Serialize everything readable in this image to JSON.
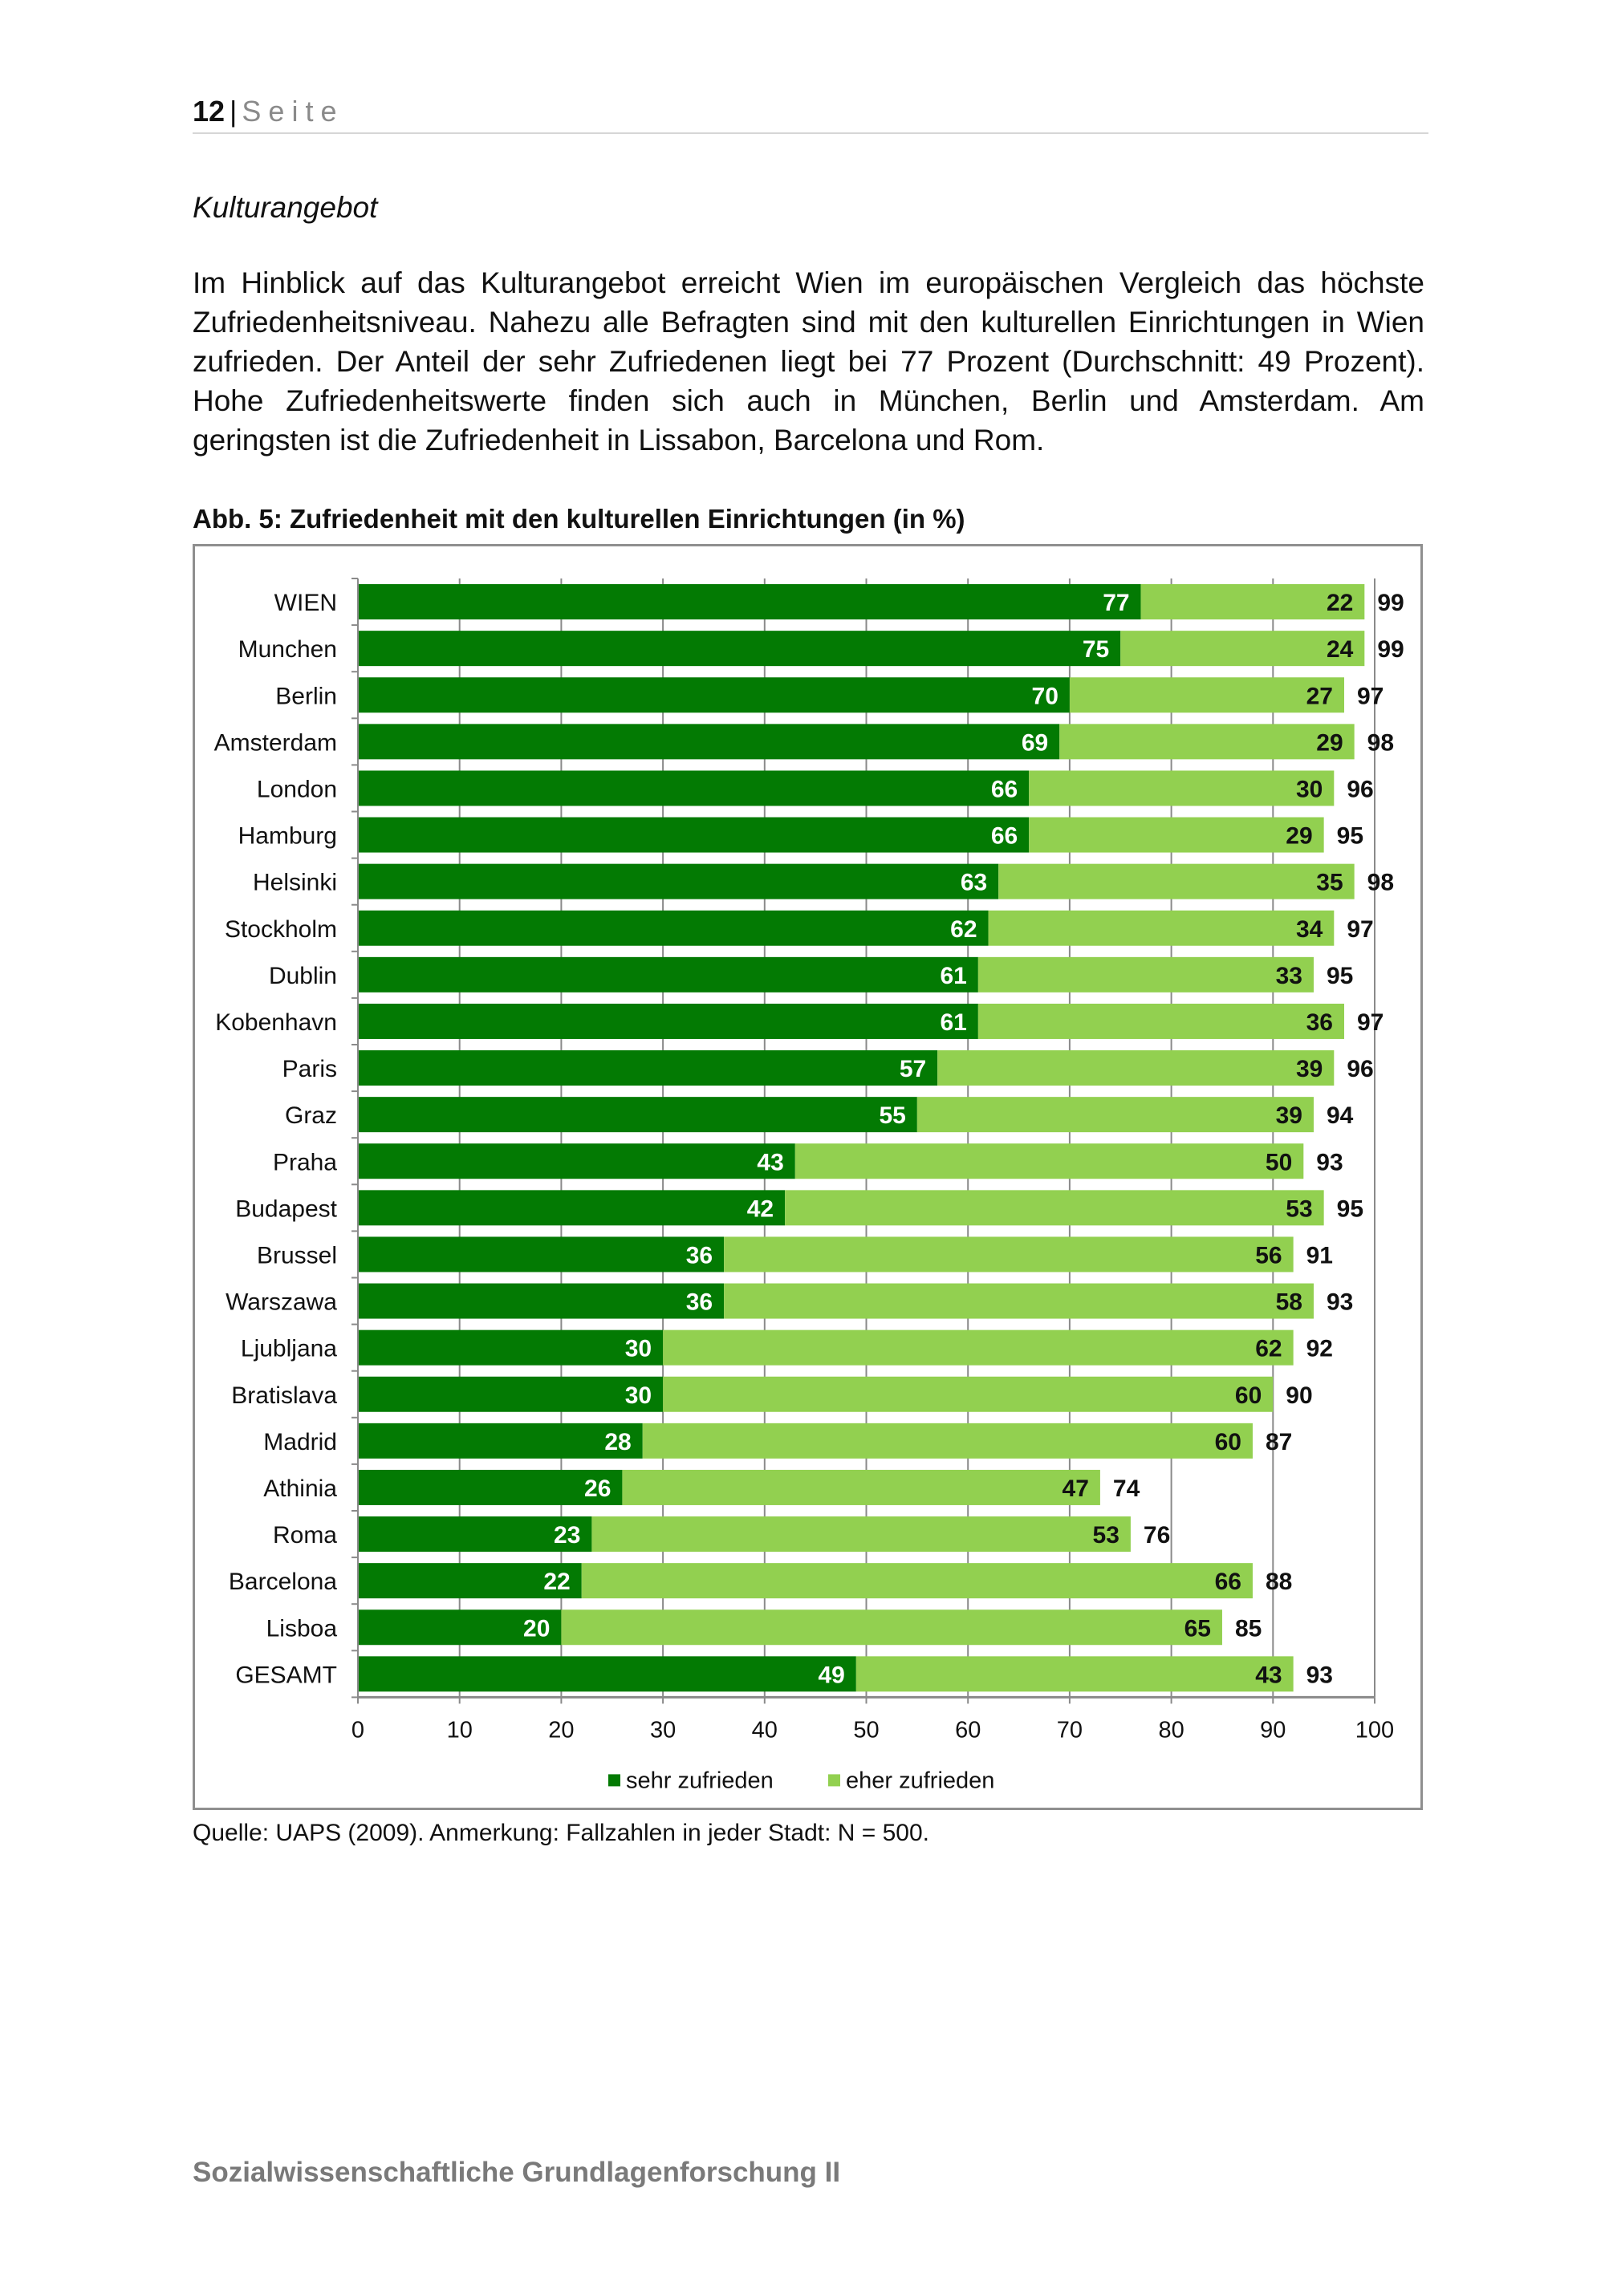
{
  "page": {
    "number": "12",
    "separator": "|",
    "label": "Seite",
    "section_title": "Kulturangebot",
    "body": "Im Hinblick auf das Kulturangebot erreicht Wien im europäischen Vergleich das höchste Zufriedenheitsniveau. Nahezu alle Befragten sind mit den kulturellen Einrichtungen in Wien zufrieden. Der Anteil der sehr Zufriedenen liegt bei 77 Prozent (Durchschnitt: 49 Prozent). Hohe Zufriedenheitswerte finden sich auch in München, Berlin und Amsterdam. Am geringsten ist die Zufriedenheit in Lissabon, Barcelona und Rom.",
    "figure_title": "Abb. 5: Zufriedenheit mit den kulturellen Einrichtungen (in %)",
    "source_note": "Quelle: UAPS (2009). Anmerkung: Fallzahlen in jeder Stadt: N = 500.",
    "footer": "Sozialwissenschaftliche Grundlagenforschung II"
  },
  "chart_data": {
    "type": "bar",
    "orientation": "horizontal",
    "stacked": true,
    "title": "Abb. 5: Zufriedenheit mit den kulturellen Einrichtungen (in %)",
    "xlabel": "",
    "ylabel": "",
    "xlim": [
      0,
      100
    ],
    "xticks": [
      "0",
      "10",
      "20",
      "30",
      "40",
      "50",
      "60",
      "70",
      "80",
      "90",
      "100"
    ],
    "grid": "vertical",
    "legend_position": "bottom-center",
    "categories": [
      "WIEN",
      "Munchen",
      "Berlin",
      "Amsterdam",
      "London",
      "Hamburg",
      "Helsinki",
      "Stockholm",
      "Dublin",
      "Kobenhavn",
      "Paris",
      "Graz",
      "Praha",
      "Budapest",
      "Brussel",
      "Warszawa",
      "Ljubljana",
      "Bratislava",
      "Madrid",
      "Athinia",
      "Roma",
      "Barcelona",
      "Lisboa",
      "GESAMT"
    ],
    "series": [
      {
        "name": "sehr zufrieden",
        "color": "#037a03",
        "label_color": "#ffffff",
        "values": [
          77,
          75,
          70,
          69,
          66,
          66,
          63,
          62,
          61,
          61,
          57,
          55,
          43,
          42,
          36,
          36,
          30,
          30,
          28,
          26,
          23,
          22,
          20,
          49
        ]
      },
      {
        "name": "eher zufrieden",
        "color": "#92d050",
        "label_color": "#111111",
        "values": [
          22,
          24,
          27,
          29,
          30,
          29,
          35,
          34,
          33,
          36,
          39,
          39,
          50,
          53,
          56,
          58,
          62,
          60,
          60,
          47,
          53,
          66,
          65,
          43
        ]
      }
    ],
    "totals": [
      99,
      99,
      97,
      98,
      96,
      95,
      98,
      97,
      95,
      97,
      96,
      94,
      93,
      95,
      91,
      93,
      92,
      90,
      87,
      74,
      76,
      88,
      85,
      93
    ]
  }
}
